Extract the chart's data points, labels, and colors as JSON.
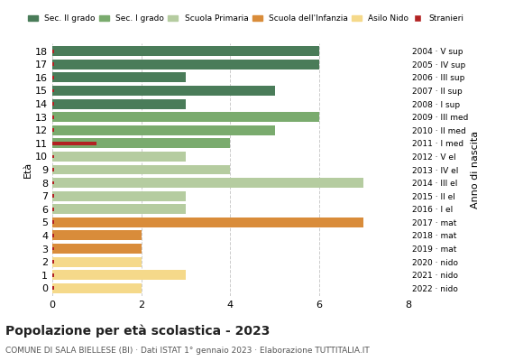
{
  "ages": [
    18,
    17,
    16,
    15,
    14,
    13,
    12,
    11,
    10,
    9,
    8,
    7,
    6,
    5,
    4,
    3,
    2,
    1,
    0
  ],
  "values": [
    6,
    6,
    3,
    5,
    3,
    6,
    5,
    4,
    3,
    4,
    7,
    3,
    3,
    7,
    2,
    2,
    2,
    3,
    2
  ],
  "stranieri_marker": {
    "age": 11,
    "value": 1
  },
  "stranieri_markers_all": [
    {
      "age": 18,
      "v": 0.05
    },
    {
      "age": 17,
      "v": 0.05
    },
    {
      "age": 16,
      "v": 0.05
    },
    {
      "age": 15,
      "v": 0.05
    },
    {
      "age": 14,
      "v": 0.05
    },
    {
      "age": 13,
      "v": 0.05
    },
    {
      "age": 12,
      "v": 0.05
    },
    {
      "age": 11,
      "v": 1
    },
    {
      "age": 10,
      "v": 0.05
    },
    {
      "age": 9,
      "v": 0.05
    },
    {
      "age": 8,
      "v": 0.05
    },
    {
      "age": 7,
      "v": 0.05
    },
    {
      "age": 6,
      "v": 0.05
    },
    {
      "age": 5,
      "v": 0.05
    },
    {
      "age": 4,
      "v": 0.05
    },
    {
      "age": 3,
      "v": 0.05
    },
    {
      "age": 2,
      "v": 0.05
    },
    {
      "age": 1,
      "v": 0.05
    },
    {
      "age": 0,
      "v": 0.05
    }
  ],
  "colors": {
    "sec2": "#4a7c59",
    "sec1": "#7aab6e",
    "primaria": "#b5cca0",
    "infanzia": "#d98c3a",
    "nido": "#f5d98a",
    "stranieri": "#b22222"
  },
  "bar_colors": {
    "18": "#4a7c59",
    "17": "#4a7c59",
    "16": "#4a7c59",
    "15": "#4a7c59",
    "14": "#4a7c59",
    "13": "#7aab6e",
    "12": "#7aab6e",
    "11": "#7aab6e",
    "10": "#b5cca0",
    "9": "#b5cca0",
    "8": "#b5cca0",
    "7": "#b5cca0",
    "6": "#b5cca0",
    "5": "#d98c3a",
    "4": "#d98c3a",
    "3": "#d98c3a",
    "2": "#f5d98a",
    "1": "#f5d98a",
    "0": "#f5d98a"
  },
  "right_labels": {
    "18": "2004 · V sup",
    "17": "2005 · IV sup",
    "16": "2006 · III sup",
    "15": "2007 · II sup",
    "14": "2008 · I sup",
    "13": "2009 · III med",
    "12": "2010 · II med",
    "11": "2011 · I med",
    "10": "2012 · V el",
    "9": "2013 · IV el",
    "8": "2014 · III el",
    "7": "2015 · II el",
    "6": "2016 · I el",
    "5": "2017 · mat",
    "4": "2018 · mat",
    "3": "2019 · mat",
    "2": "2020 · nido",
    "1": "2021 · nido",
    "0": "2022 · nido"
  },
  "xlim": [
    0,
    8
  ],
  "xticks": [
    0,
    2,
    4,
    6,
    8
  ],
  "title": "Popolazione per età scolastica - 2023",
  "subtitle": "COMUNE DI SALA BIELLESE (BI) · Dati ISTAT 1° gennaio 2023 · Elaborazione TUTTITALIA.IT",
  "ylabel": "Età",
  "right_ylabel": "Anno di nascita",
  "legend_labels": [
    "Sec. II grado",
    "Sec. I grado",
    "Scuola Primaria",
    "Scuola dell'Infanzia",
    "Asilo Nido",
    "Stranieri"
  ],
  "legend_colors": [
    "#4a7c59",
    "#7aab6e",
    "#b5cca0",
    "#d98c3a",
    "#f5d98a",
    "#b22222"
  ],
  "background_color": "#ffffff",
  "bar_height": 0.75
}
